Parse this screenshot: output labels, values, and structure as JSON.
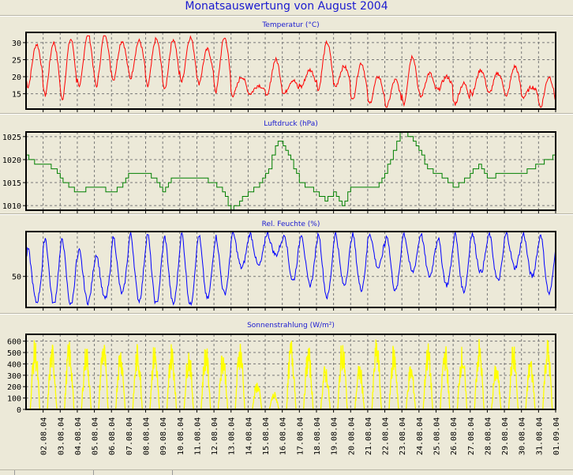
{
  "title": "Monatsauswertung von August 2004",
  "chart_data": [
    {
      "type": "line",
      "title": "Temperatur (°C)",
      "color": "#ff0000",
      "yticks": [
        15,
        20,
        25,
        30
      ],
      "ylim": [
        10.5,
        33
      ],
      "daily_max": [
        29.5,
        30,
        31,
        32.5,
        32.5,
        30.5,
        30.5,
        31,
        31,
        31.5,
        28,
        31.5,
        20,
        17.5,
        25,
        19,
        22,
        30,
        23,
        24,
        20,
        19,
        26,
        21,
        20,
        18,
        22,
        21,
        23,
        17,
        20
      ],
      "daily_min": [
        17,
        14.5,
        13,
        16.5,
        17,
        19,
        19.5,
        17,
        16,
        18.5,
        18,
        15.5,
        14.5,
        15,
        14,
        15,
        17,
        16,
        17,
        13,
        12,
        11,
        12,
        14,
        16,
        12,
        15,
        15,
        14,
        14,
        11
      ]
    },
    {
      "type": "line",
      "title": "Luftdruck (hPa)",
      "color": "#008000",
      "yticks": [
        1010,
        1015,
        1020,
        1025
      ],
      "ylim": [
        1009,
        1026
      ],
      "step": true,
      "points": [
        [
          0,
          1021
        ],
        [
          0.5,
          1019
        ],
        [
          1.3,
          1019
        ],
        [
          2,
          1016
        ],
        [
          2.5,
          1014
        ],
        [
          3,
          1013
        ],
        [
          4,
          1014
        ],
        [
          5,
          1013
        ],
        [
          5.5,
          1014
        ],
        [
          6,
          1017
        ],
        [
          7,
          1017
        ],
        [
          7.5,
          1016
        ],
        [
          8,
          1013
        ],
        [
          8.5,
          1016
        ],
        [
          10,
          1016
        ],
        [
          11,
          1015
        ],
        [
          11.5,
          1013
        ],
        [
          12,
          1009
        ],
        [
          12.5,
          1011
        ],
        [
          13,
          1013
        ],
        [
          13.5,
          1014
        ],
        [
          14.2,
          1018
        ],
        [
          14.6,
          1023
        ],
        [
          14.9,
          1024
        ],
        [
          15.5,
          1020
        ],
        [
          16,
          1015
        ],
        [
          16.5,
          1014
        ],
        [
          17,
          1013
        ],
        [
          17.5,
          1011
        ],
        [
          18,
          1013
        ],
        [
          18.5,
          1010
        ],
        [
          19,
          1014
        ],
        [
          20.5,
          1014
        ],
        [
          21,
          1017
        ],
        [
          21.5,
          1022
        ],
        [
          21.9,
          1026
        ],
        [
          22.5,
          1025
        ],
        [
          23,
          1022
        ],
        [
          23.5,
          1018
        ],
        [
          24,
          1017
        ],
        [
          24.7,
          1015
        ],
        [
          25,
          1014
        ],
        [
          25.5,
          1015
        ],
        [
          26,
          1017
        ],
        [
          26.5,
          1019
        ],
        [
          27,
          1016
        ],
        [
          28,
          1017
        ],
        [
          29,
          1017
        ],
        [
          29.5,
          1018
        ],
        [
          30,
          1019
        ],
        [
          31,
          1021
        ]
      ]
    },
    {
      "type": "line",
      "title": "Rel. Feuchte (%)",
      "color": "#0000ff",
      "yticks": [
        50
      ],
      "ylim": [
        14,
        102
      ],
      "daily_max": [
        82,
        95,
        94,
        80,
        76,
        96,
        100,
        100,
        96,
        100,
        98,
        96,
        100,
        100,
        100,
        100,
        100,
        100,
        100,
        100,
        100,
        98,
        100,
        100,
        95,
        100,
        100,
        100,
        100,
        100,
        100
      ],
      "daily_min": [
        20,
        18,
        17,
        20,
        24,
        30,
        22,
        18,
        18,
        17,
        24,
        30,
        60,
        62,
        75,
        45,
        40,
        26,
        40,
        35,
        60,
        33,
        55,
        50,
        40,
        33,
        55,
        45,
        60,
        50,
        30
      ]
    },
    {
      "type": "area",
      "title": "Sonnenstrahlung (W/m²)",
      "color": "#ffff00",
      "yticks": [
        0,
        100,
        200,
        300,
        400,
        500,
        600
      ],
      "ylim": [
        0,
        660
      ],
      "daily_peak": [
        630,
        590,
        620,
        590,
        640,
        580,
        590,
        600,
        600,
        560,
        600,
        560,
        640,
        260,
        160,
        640,
        580,
        410,
        640,
        420,
        640,
        590,
        420,
        600,
        600,
        570,
        630,
        420,
        600,
        480,
        640
      ]
    }
  ],
  "x_labels": [
    "02.08.04",
    "03.08.04",
    "04.08.04",
    "05.08.04",
    "06.08.04",
    "07.08.04",
    "08.08.04",
    "09.08.04",
    "10.08.04",
    "11.08.04",
    "12.08.04",
    "13.08.04",
    "14.08.04",
    "15.08.04",
    "16.08.04",
    "17.08.04",
    "18.08.04",
    "19.08.04",
    "20.08.04",
    "21.08.04",
    "22.08.04",
    "23.08.04",
    "24.08.04",
    "25.08.04",
    "26.08.04",
    "27.08.04",
    "28.08.04",
    "29.08.04",
    "30.08.04",
    "31.08.04",
    "01.09.04"
  ]
}
